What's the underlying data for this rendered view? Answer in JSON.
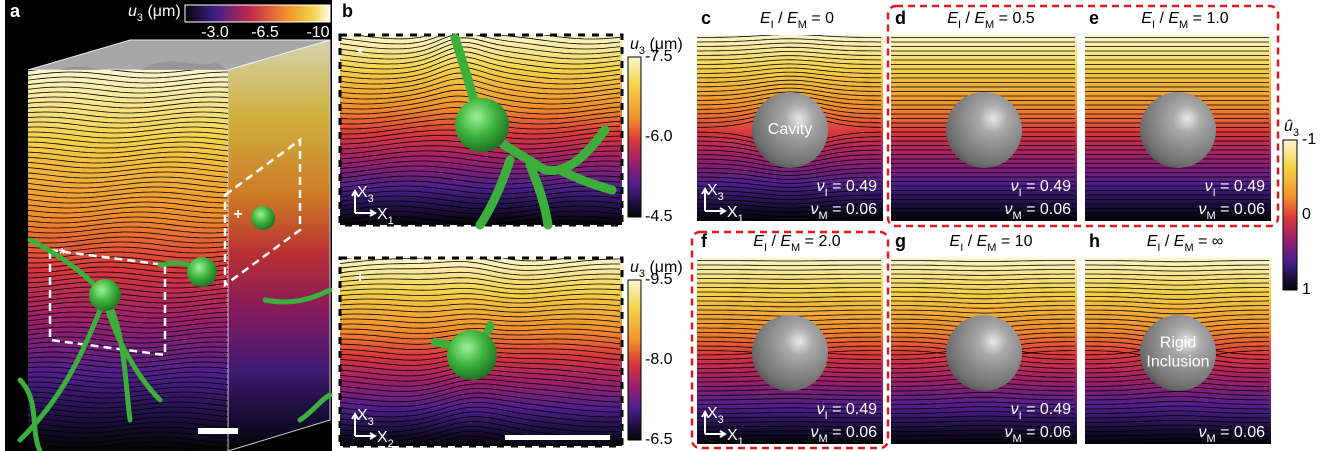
{
  "panel_a": {
    "letter": "a",
    "colorbar_label": [
      [
        "u",
        "3"
      ],
      [
        " (μm)"
      ]
    ],
    "colorbar_ticks": [
      "-3.0",
      "-6.5",
      "-10"
    ],
    "region_markers": [
      "*",
      "+"
    ]
  },
  "panel_b": {
    "letter": "b",
    "top": {
      "marker": "*",
      "colorbar_label": [
        [
          "u",
          "3"
        ],
        [
          " (μm)"
        ]
      ],
      "colorbar_ticks": [
        "-7.5",
        "-6.0",
        "-4.5"
      ],
      "axis_vertical": [
        [
          "X",
          "3"
        ]
      ],
      "axis_horizontal": [
        [
          "X",
          "1"
        ]
      ]
    },
    "bottom": {
      "marker": "+",
      "colorbar_label": [
        [
          "u",
          "3"
        ],
        [
          " (μm)"
        ]
      ],
      "colorbar_ticks": [
        "-9.5",
        "-8.0",
        "-6.5"
      ],
      "axis_vertical": [
        [
          "X",
          "3"
        ]
      ],
      "axis_horizontal": [
        [
          "X",
          "2"
        ]
      ]
    }
  },
  "simulations": [
    {
      "letter": "c",
      "title": [
        [
          "E",
          "I"
        ],
        [
          " / "
        ],
        [
          "E",
          "M"
        ],
        [
          " = 0"
        ]
      ],
      "inclusion_label": [
        "Cavity"
      ],
      "nu_I": [
        [
          "ν",
          "I"
        ],
        [
          " = 0.49"
        ]
      ],
      "nu_M": [
        [
          "ν",
          "M"
        ],
        [
          " = 0.06"
        ]
      ],
      "axis_vertical": [
        [
          "X",
          "3"
        ]
      ],
      "axis_horizontal": [
        [
          "X",
          "1"
        ]
      ]
    },
    {
      "letter": "d",
      "title": [
        [
          "E",
          "I"
        ],
        [
          " / "
        ],
        [
          "E",
          "M"
        ],
        [
          " = 0.5"
        ]
      ],
      "nu_I": [
        [
          "ν",
          "I"
        ],
        [
          " = 0.49"
        ]
      ],
      "nu_M": [
        [
          "ν",
          "M"
        ],
        [
          " = 0.06"
        ]
      ]
    },
    {
      "letter": "e",
      "title": [
        [
          "E",
          "I"
        ],
        [
          " / "
        ],
        [
          "E",
          "M"
        ],
        [
          " = 1.0"
        ]
      ],
      "nu_I": [
        [
          "ν",
          "I"
        ],
        [
          " = 0.49"
        ]
      ],
      "nu_M": [
        [
          "ν",
          "M"
        ],
        [
          " = 0.06"
        ]
      ]
    },
    {
      "letter": "f",
      "title": [
        [
          "E",
          "I"
        ],
        [
          " / "
        ],
        [
          "E",
          "M"
        ],
        [
          " = 2.0"
        ]
      ],
      "nu_I": [
        [
          "ν",
          "I"
        ],
        [
          " = 0.49"
        ]
      ],
      "nu_M": [
        [
          "ν",
          "M"
        ],
        [
          " = 0.06"
        ]
      ],
      "axis_vertical": [
        [
          "X",
          "3"
        ]
      ],
      "axis_horizontal": [
        [
          "X",
          "1"
        ]
      ]
    },
    {
      "letter": "g",
      "title": [
        [
          "E",
          "I"
        ],
        [
          " / "
        ],
        [
          "E",
          "M"
        ],
        [
          " = 10"
        ]
      ],
      "nu_I": [
        [
          "ν",
          "I"
        ],
        [
          " = 0.49"
        ]
      ],
      "nu_M": [
        [
          "ν",
          "M"
        ],
        [
          " = 0.06"
        ]
      ]
    },
    {
      "letter": "h",
      "title": [
        [
          "E",
          "I"
        ],
        [
          " / "
        ],
        [
          "E",
          "M"
        ],
        [
          " = ∞"
        ]
      ],
      "inclusion_label": [
        "Rigid",
        "Inclusion"
      ],
      "nu_M": [
        [
          "ν",
          "M"
        ],
        [
          " = 0.06"
        ]
      ]
    }
  ],
  "colorbar": {
    "label": [
      [
        "û",
        "3"
      ]
    ],
    "ticks": [
      "-1",
      "0",
      "1"
    ]
  }
}
